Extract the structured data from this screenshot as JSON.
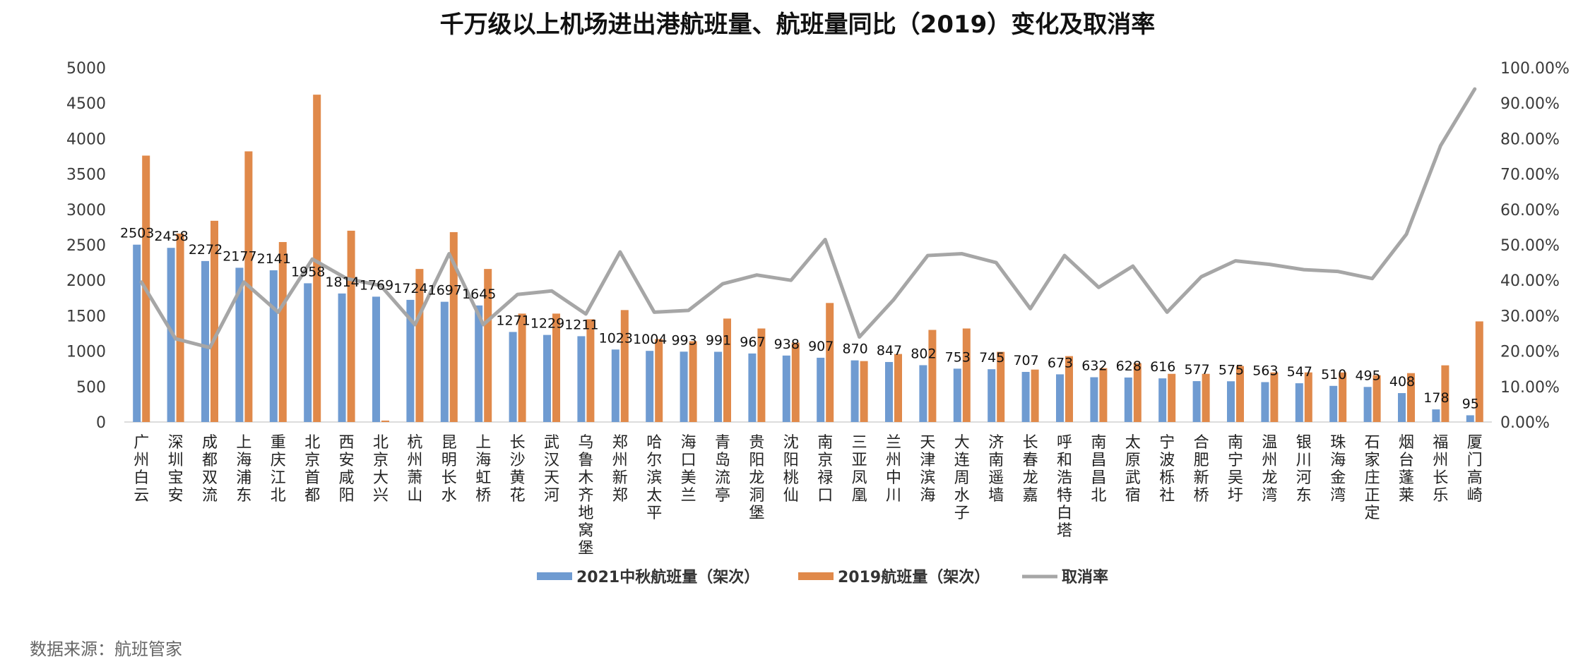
{
  "chart_data": {
    "type": "bar",
    "title": "千万级以上机场进出港航班量、航班量同比（2019）变化及取消率",
    "categories": [
      "广州白云",
      "深圳宝安",
      "成都双流",
      "上海浦东",
      "重庆江北",
      "北京首都",
      "西安咸阳",
      "北京大兴",
      "杭州萧山",
      "昆明长水",
      "上海虹桥",
      "长沙黄花",
      "武汉天河",
      "乌鲁木齐地窝堡",
      "郑州新郑",
      "哈尔滨太平",
      "海口美兰",
      "青岛流亭",
      "贵阳龙洞堡",
      "沈阳桃仙",
      "南京禄口",
      "三亚凤凰",
      "兰州中川",
      "天津滨海",
      "大连周水子",
      "济南遥墙",
      "长春龙嘉",
      "呼和浩特白塔",
      "南昌昌北",
      "太原武宿",
      "宁波栎社",
      "合肥新桥",
      "南宁吴圩",
      "温州龙湾",
      "银川河东",
      "珠海金湾",
      "石家庄正定",
      "烟台蓬莱",
      "福州长乐",
      "厦门高崎"
    ],
    "series": [
      {
        "name": "2021中秋航班量（架次）",
        "color": "#6f9bd1",
        "axis": "left",
        "values": [
          2503,
          2458,
          2272,
          2177,
          2141,
          1958,
          1814,
          1769,
          1724,
          1697,
          1645,
          1271,
          1229,
          1211,
          1023,
          1004,
          993,
          991,
          967,
          938,
          907,
          870,
          847,
          802,
          753,
          745,
          707,
          673,
          632,
          628,
          616,
          577,
          575,
          563,
          547,
          510,
          495,
          408,
          178,
          95
        ],
        "labels": [
          "2503",
          "2458",
          "2272",
          "2177",
          "2141",
          "1958",
          "1814",
          "1769",
          "1724",
          "1697",
          "1645",
          "1271",
          "1229",
          "1211",
          "1023",
          "1004",
          "993",
          "991",
          "967",
          "938",
          "907",
          "870",
          "847",
          "802",
          "753",
          "745",
          "707",
          "673",
          "632",
          "628",
          "616",
          "577",
          "575",
          "563",
          "547",
          "510",
          "495",
          "408",
          "178",
          "95"
        ]
      },
      {
        "name": "2019航班量（架次）",
        "color": "#e0894a",
        "axis": "left",
        "values": [
          3760,
          2660,
          2840,
          3820,
          2540,
          4620,
          2700,
          20,
          2160,
          2680,
          2160,
          1530,
          1530,
          1450,
          1580,
          1170,
          1140,
          1460,
          1320,
          1120,
          1680,
          860,
          960,
          1300,
          1320,
          990,
          740,
          930,
          760,
          830,
          680,
          680,
          790,
          700,
          700,
          700,
          660,
          690,
          800,
          1420
        ]
      },
      {
        "name": "取消率",
        "color": "#a6a6a6",
        "type": "line",
        "axis": "right",
        "values": [
          39.5,
          23.5,
          21,
          39.5,
          31,
          46,
          40.5,
          38.5,
          27.5,
          47.5,
          27.5,
          36,
          37,
          30.5,
          48,
          31,
          31.5,
          39,
          41.5,
          40,
          51.5,
          24,
          34.5,
          47,
          47.5,
          45,
          32,
          47,
          38,
          44,
          31,
          41,
          45.5,
          44.5,
          43,
          42.5,
          40.5,
          53,
          78,
          94
        ]
      }
    ],
    "y_left": {
      "min": 0,
      "max": 5000,
      "ticks": [
        "0",
        "500",
        "1000",
        "1500",
        "2000",
        "2500",
        "3000",
        "3500",
        "4000",
        "4500",
        "5000"
      ]
    },
    "y_right": {
      "min": 0,
      "max": 100,
      "ticks": [
        "0.00%",
        "10.00%",
        "20.00%",
        "30.00%",
        "40.00%",
        "50.00%",
        "60.00%",
        "70.00%",
        "80.00%",
        "90.00%",
        "100.00%"
      ]
    },
    "grid": false,
    "legend": {
      "position": "bottom",
      "entries": [
        "2021中秋航班量（架次）",
        "2019航班量（架次）",
        "取消率"
      ]
    }
  },
  "source": "数据来源：航班管家"
}
